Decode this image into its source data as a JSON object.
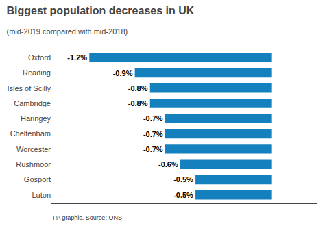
{
  "chart_data": {
    "type": "bar",
    "orientation": "horizontal",
    "title": "Biggest population decreases in UK",
    "subtitle": "(mid-2019 compared with mid-2018)",
    "footnote": "PA graphic. Source: ONS",
    "categories": [
      "Luton",
      "Gosport",
      "Rushmoor",
      "Worcester",
      "Cheltenham",
      "Haringey",
      "Cambridge",
      "Isles of Scilly",
      "Reading",
      "Oxford"
    ],
    "values": [
      -0.5,
      -0.5,
      -0.6,
      -0.7,
      -0.7,
      -0.7,
      -0.8,
      -0.8,
      -0.9,
      -1.2
    ],
    "value_labels": [
      "-0.5%",
      "-0.5%",
      "-0.6%",
      "-0.7%",
      "-0.7%",
      "-0.7%",
      "-0.8%",
      "-0.8%",
      "-0.9%",
      "-1.2%"
    ],
    "data_labels": true,
    "color": "#1480be",
    "xlim": [
      -1.45,
      0.3
    ],
    "tick_labels": "y",
    "grid": false
  }
}
